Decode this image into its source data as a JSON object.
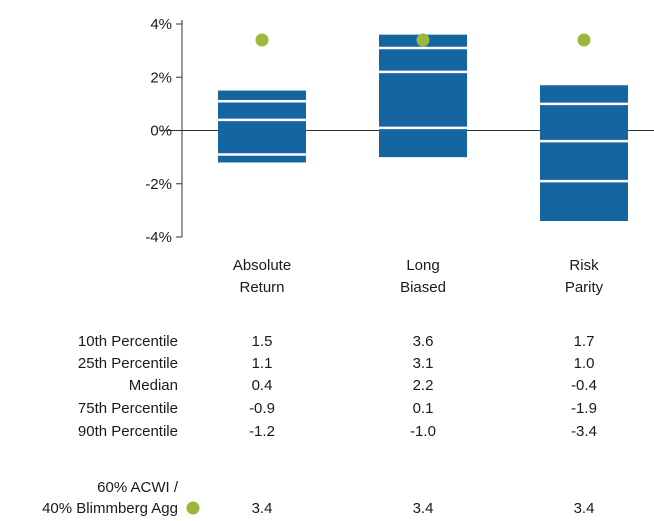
{
  "chart_data": {
    "type": "box",
    "title": "",
    "xlabel": "",
    "ylabel": "",
    "ylim": [
      -4,
      4
    ],
    "yticks": [
      {
        "value": 4,
        "label": "4%"
      },
      {
        "value": 2,
        "label": "2%"
      },
      {
        "value": 0,
        "label": "0%"
      },
      {
        "value": -2,
        "label": "-2%"
      },
      {
        "value": -4,
        "label": "-4%"
      }
    ],
    "categories": [
      {
        "line1": "Absolute",
        "line2": "Return"
      },
      {
        "line1": "Long",
        "line2": "Biased"
      },
      {
        "line1": "Risk",
        "line2": "Parity"
      }
    ],
    "series": [
      {
        "name": "10th Percentile",
        "values": [
          1.5,
          3.6,
          1.7
        ]
      },
      {
        "name": "25th Percentile",
        "values": [
          1.1,
          3.1,
          1.0
        ]
      },
      {
        "name": "Median",
        "values": [
          0.4,
          2.2,
          -0.4
        ]
      },
      {
        "name": "75th Percentile",
        "values": [
          -0.9,
          0.1,
          -1.9
        ]
      },
      {
        "name": "90th Percentile",
        "values": [
          -1.2,
          -1.0,
          -3.4
        ]
      }
    ],
    "benchmark": {
      "label_line1": "60% ACWI /",
      "label_line2": "40% Blimmberg Agg",
      "values": [
        3.4,
        3.4,
        3.4
      ]
    },
    "table_values": [
      [
        "1.5",
        "3.6",
        "1.7"
      ],
      [
        "1.1",
        "3.1",
        "1.0"
      ],
      [
        "0.4",
        "2.2",
        "-0.4"
      ],
      [
        "-0.9",
        "0.1",
        "-1.9"
      ],
      [
        "-1.2",
        "-1.0",
        "-3.4"
      ]
    ],
    "benchmark_table_values": [
      "3.4",
      "3.4",
      "3.4"
    ],
    "colors": {
      "box": "#1565a0",
      "divider": "#ffffff",
      "dot": "#9ab83a",
      "axis": "#333333"
    }
  }
}
